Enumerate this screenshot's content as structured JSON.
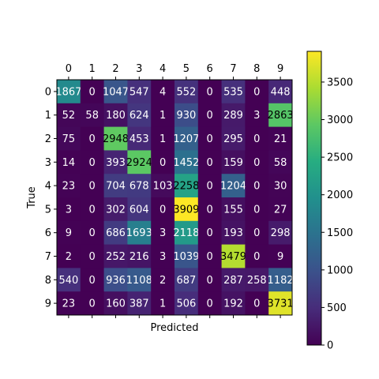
{
  "chart_data": {
    "type": "heatmap",
    "title": "",
    "xlabel": "Predicted",
    "ylabel": "True",
    "x_categories": [
      "0",
      "1",
      "2",
      "3",
      "4",
      "5",
      "6",
      "7",
      "8",
      "9"
    ],
    "y_categories": [
      "0",
      "1",
      "2",
      "3",
      "4",
      "5",
      "6",
      "7",
      "8",
      "9"
    ],
    "matrix": [
      [
        1867,
        0,
        1047,
        547,
        4,
        552,
        0,
        535,
        0,
        448
      ],
      [
        52,
        58,
        180,
        624,
        1,
        930,
        0,
        289,
        3,
        2863
      ],
      [
        75,
        0,
        2948,
        453,
        1,
        1207,
        0,
        295,
        0,
        21
      ],
      [
        14,
        0,
        393,
        2924,
        0,
        1452,
        0,
        159,
        0,
        58
      ],
      [
        23,
        0,
        704,
        678,
        103,
        2258,
        0,
        1204,
        0,
        30
      ],
      [
        3,
        0,
        302,
        604,
        0,
        3909,
        0,
        155,
        0,
        27
      ],
      [
        9,
        0,
        686,
        1693,
        3,
        2118,
        0,
        193,
        0,
        298
      ],
      [
        2,
        0,
        252,
        216,
        3,
        1039,
        0,
        3479,
        0,
        9
      ],
      [
        540,
        0,
        936,
        1108,
        2,
        687,
        0,
        287,
        258,
        1182
      ],
      [
        23,
        0,
        160,
        387,
        1,
        506,
        0,
        192,
        0,
        3731
      ]
    ],
    "colormap": "viridis",
    "color_range": [
      0,
      3909
    ],
    "colorbar_ticks": [
      "0",
      "500",
      "1000",
      "1500",
      "2000",
      "2500",
      "3000",
      "3500"
    ],
    "x_tick_position": "top",
    "grid": false
  }
}
